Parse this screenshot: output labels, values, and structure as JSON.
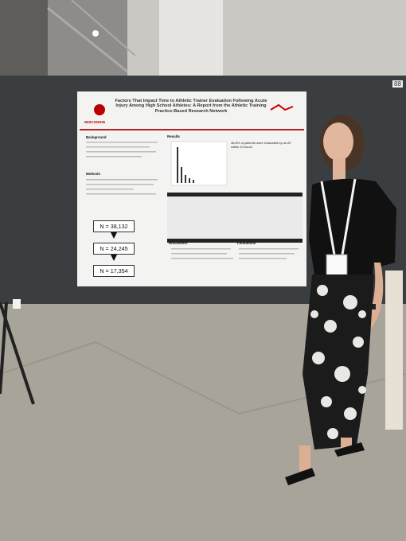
{
  "board_number": "88",
  "poster": {
    "title": "Factors That Impact Time to Athletic Trainer Evaluation Following Acute Injury Among High School Athletes: A Report from the Athletic Training Practice-Based Research Network",
    "institution": "WISCONSIN",
    "sections": {
      "background": "Background",
      "methods": "Methods",
      "results": "Results",
      "discussion": "Discussion",
      "limitations": "Limitations"
    },
    "flow": [
      "N = 38,132",
      "N = 24,245",
      "N = 17,354"
    ],
    "key_finding": "48.8% of patients were evaluated by an AT within 24 hours"
  }
}
